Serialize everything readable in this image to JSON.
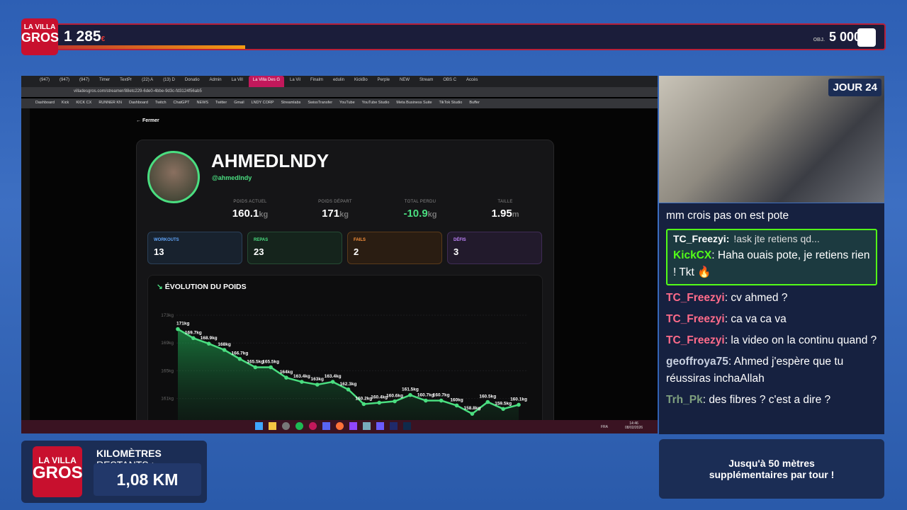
{
  "overlay": {
    "logo_top": "LA VILLA",
    "logo_bottom": "GROS",
    "score": "1 285",
    "score_unit": "€",
    "goal_label": "OBJ.",
    "goal": "5 000 €",
    "day": "JOUR 24",
    "km_label_bold": "KILOMÈTRES",
    "km_label": "RESTANTS :",
    "km_value": "1,08 KM",
    "bonus": "Jusqu'à 50 mètres supplémentaires par tour !"
  },
  "browser": {
    "tabs": [
      "(947)",
      "(947)",
      "(947)",
      "Timer",
      "TextPr",
      "(22) A",
      "(13) D",
      "Donatio",
      "Admin",
      "La Vill",
      "La Villa Des G",
      "La Vil",
      "Finalm",
      "edulin",
      "KickBo",
      "Perple",
      "NEW",
      "Stream",
      "OBS C",
      "Accès"
    ],
    "active_tab": 10,
    "url": "villadesgros.com/streamer/88etc229-6de0-4bbe-9d3c-fd3124f56ab5",
    "bookmarks": [
      "Dashboard",
      "Kick",
      "KICK CX",
      "RUNNER KN",
      "Dashboard",
      "Twitch",
      "ChatGPT",
      "NEWS",
      "Twitter",
      "Gmail",
      "LNDY CORP",
      "Streamlabs",
      "SwissTransfer",
      "YouTube",
      "YouTube Studio",
      "Meta Business Suite",
      "TikTok Studio",
      "Buffer"
    ]
  },
  "profile": {
    "close": "Fermer",
    "name": "AHMEDLNDY",
    "handle": "@ahmedlndy",
    "stats": [
      {
        "label": "POIDS ACTUEL",
        "value": "160.1",
        "unit": "kg"
      },
      {
        "label": "POIDS DÉPART",
        "value": "171",
        "unit": "kg"
      },
      {
        "label": "TOTAL PERDU",
        "value": "-10.9",
        "unit": "kg"
      },
      {
        "label": "TAILLE",
        "value": "1.95",
        "unit": "m"
      }
    ],
    "cards": [
      {
        "label": "WORKOUTS",
        "value": "13"
      },
      {
        "label": "REPAS",
        "value": "23"
      },
      {
        "label": "FAILS",
        "value": "2"
      },
      {
        "label": "DÉFIS",
        "value": "3"
      }
    ]
  },
  "chart_data": {
    "type": "area",
    "title": "ÉVOLUTION DU POIDS",
    "color": "#4ade80",
    "values": [
      171,
      169.7,
      168.9,
      168,
      166.7,
      165.5,
      165.5,
      164,
      163.4,
      163,
      163.4,
      162.3,
      160.2,
      160.4,
      160.6,
      161.5,
      160.7,
      160.7,
      160,
      158.8,
      160.5,
      159.5,
      160.1
    ],
    "value_labels": [
      "171kg",
      "169.7kg",
      "168.9kg",
      "168kg",
      "166.7kg",
      "165.5kg",
      "165.5kg",
      "164kg",
      "163.4kg",
      "163kg",
      "163.4kg",
      "162.3kg",
      "160.2kg",
      "160.4kg",
      "160.6kg",
      "161.5kg",
      "160.7kg",
      "160.7kg",
      "160kg",
      "158.8kg",
      "160.5kg",
      "159.5kg",
      "160.1kg"
    ],
    "ylim": [
      157,
      173
    ],
    "yticks": [
      {
        "value": 173,
        "label": "173kg"
      },
      {
        "value": 169,
        "label": "169kg"
      },
      {
        "value": 165,
        "label": "165kg"
      },
      {
        "value": 161,
        "label": "161kg"
      }
    ],
    "grid": true
  },
  "chat": [
    {
      "text": "mm crois pas on est pote"
    },
    {
      "reply_to": "TC_Freezyi:",
      "reply_text": "!ask jte retiens qd...",
      "user": "KickCX",
      "color": "#53fc18",
      "text": ": Haha ouais pote, je retiens rien ! Tkt 🔥"
    },
    {
      "user": "TC_Freezyi",
      "color": "#ff6b8a",
      "text": ": cv ahmed ?"
    },
    {
      "user": "TC_Freezyi",
      "color": "#ff6b8a",
      "text": ": ca va ca va"
    },
    {
      "user": "TC_Freezyi",
      "color": "#ff6b8a",
      "text": ": la video on la continu quand ?"
    },
    {
      "user": "geoffroya75",
      "color": "#c8d0e0",
      "text": ": Ahmed j'espère que tu réussiras inchaAllah"
    },
    {
      "user": "Trh_Pk",
      "color": "#7fa07f",
      "text": ": des fibres ? c'est a dire ?"
    }
  ],
  "taskbar": {
    "lang": "FRA",
    "time": "14:46",
    "date": "08/02/2026"
  }
}
